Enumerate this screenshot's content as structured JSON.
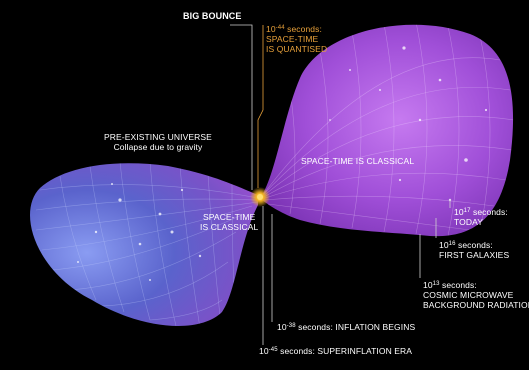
{
  "labels": {
    "big_bounce": "BIG BOUNCE",
    "quantised_time_exp": "-44",
    "quantised_time_unit": " seconds:",
    "quantised_desc": "SPACE-TIME",
    "quantised_desc2": "IS QUANTISED",
    "pre_existing_1": "PRE-EXISTING UNIVERSE",
    "pre_existing_2": "Collapse due to gravity",
    "classical_left_1": "SPACE-TIME",
    "classical_left_2": "IS CLASSICAL",
    "classical_right": "SPACE-TIME IS CLASSICAL",
    "today_exp": "17",
    "today_unit": " seconds:",
    "today_desc": "TODAY",
    "galaxies_exp": "16",
    "galaxies_unit": " seconds:",
    "galaxies_desc": "FIRST GALAXIES",
    "cmb_exp": "13",
    "cmb_unit": " seconds:",
    "cmb_desc_1": "COSMIC MICROWAVE",
    "cmb_desc_2": "BACKGROUND RADIATION",
    "inflation_exp": "-38",
    "inflation_unit": " seconds: INFLATION BEGINS",
    "superinflation_exp": "-45",
    "superinflation_unit": " seconds: SUPERINFLATION ERA",
    "ten": "10"
  },
  "colors": {
    "background": "#000000",
    "left_cone": "#6a78d6",
    "right_cone": "#a24fd8",
    "bounce_glow": "#f0b020",
    "quantised_text": "#e8a13a",
    "label_text": "#ffffff"
  }
}
